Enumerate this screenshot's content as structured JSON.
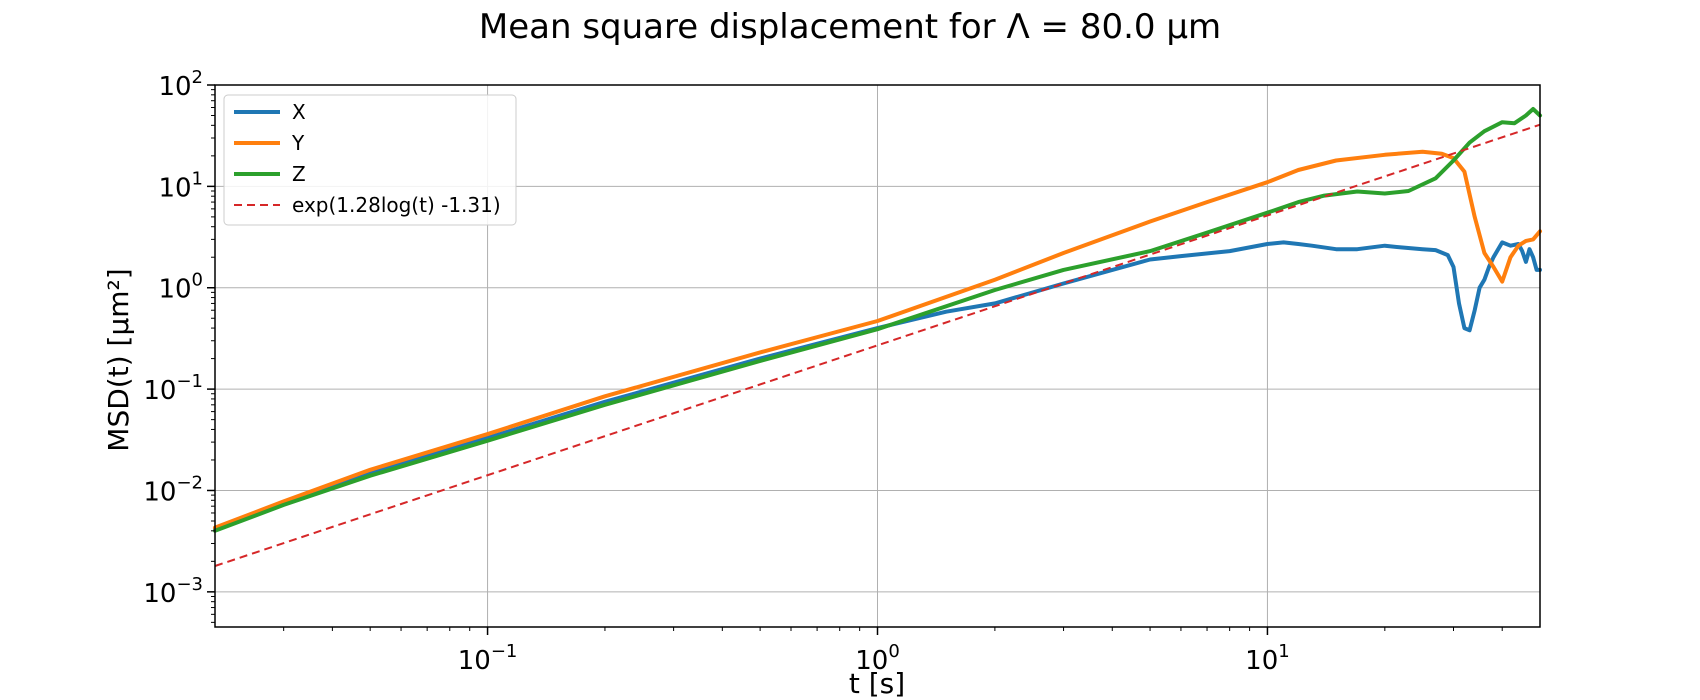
{
  "chart_data": {
    "type": "line",
    "title": "Mean square displacement for Λ = 80.0 μm",
    "xlabel": "t [s]",
    "ylabel": "MSD(t) [μm²]",
    "xscale": "log",
    "yscale": "log",
    "xlim": [
      0.02,
      50
    ],
    "ylim": [
      0.00045,
      100
    ],
    "grid": true,
    "legend_position": "top-left",
    "x_ticks": [
      {
        "value": 0.1,
        "base": "10",
        "exp": "−1"
      },
      {
        "value": 1,
        "base": "10",
        "exp": "0"
      },
      {
        "value": 10,
        "base": "10",
        "exp": "1"
      }
    ],
    "y_ticks": [
      {
        "value": 0.001,
        "base": "10",
        "exp": "−3"
      },
      {
        "value": 0.01,
        "base": "10",
        "exp": "−2"
      },
      {
        "value": 0.1,
        "base": "10",
        "exp": "−1"
      },
      {
        "value": 1,
        "base": "10",
        "exp": "0"
      },
      {
        "value": 10,
        "base": "10",
        "exp": "1"
      },
      {
        "value": 100,
        "base": "10",
        "exp": "2"
      }
    ],
    "series": [
      {
        "name": "X",
        "color": "#1f77b4",
        "style": "solid",
        "x": [
          0.02,
          0.03,
          0.05,
          0.1,
          0.2,
          0.5,
          1.0,
          1.5,
          2.0,
          3.0,
          4.0,
          5.0,
          6.0,
          8.0,
          10.0,
          11.0,
          12.0,
          13.0,
          15.0,
          17.0,
          20.0,
          22.0,
          25.0,
          27.0,
          29.0,
          30.0,
          31.0,
          32.0,
          33.0,
          34.0,
          35.0,
          36.0,
          37.0,
          38.0,
          40.0,
          42.0,
          44.0,
          45.0,
          46.0,
          47.0,
          48.0,
          49.0,
          50.0
        ],
        "y": [
          0.0042,
          0.0075,
          0.015,
          0.033,
          0.075,
          0.2,
          0.4,
          0.58,
          0.7,
          1.1,
          1.5,
          1.9,
          2.05,
          2.3,
          2.7,
          2.8,
          2.7,
          2.6,
          2.4,
          2.4,
          2.6,
          2.5,
          2.4,
          2.35,
          2.1,
          1.6,
          0.7,
          0.4,
          0.38,
          0.6,
          1.0,
          1.2,
          1.6,
          2.0,
          2.8,
          2.6,
          2.7,
          2.3,
          1.8,
          2.4,
          2.0,
          1.5,
          1.5
        ]
      },
      {
        "name": "Y",
        "color": "#ff7f0e",
        "style": "solid",
        "x": [
          0.02,
          0.03,
          0.05,
          0.1,
          0.2,
          0.5,
          1.0,
          2.0,
          3.0,
          5.0,
          7.0,
          10.0,
          12.0,
          15.0,
          20.0,
          25.0,
          28.0,
          30.0,
          32.0,
          34.0,
          36.0,
          38.0,
          40.0,
          42.0,
          44.0,
          46.0,
          48.0,
          50.0
        ],
        "y": [
          0.0043,
          0.0078,
          0.016,
          0.036,
          0.085,
          0.23,
          0.47,
          1.2,
          2.2,
          4.5,
          7.0,
          11.0,
          14.5,
          18.0,
          20.5,
          22.0,
          21.0,
          19.0,
          14.0,
          5.0,
          2.2,
          1.6,
          1.15,
          2.0,
          2.6,
          2.9,
          3.0,
          3.6
        ]
      },
      {
        "name": "Z",
        "color": "#2ca02c",
        "style": "solid",
        "x": [
          0.02,
          0.03,
          0.05,
          0.1,
          0.2,
          0.5,
          1.0,
          2.0,
          3.0,
          5.0,
          7.0,
          10.0,
          12.0,
          14.0,
          17.0,
          20.0,
          23.0,
          27.0,
          30.0,
          33.0,
          36.0,
          40.0,
          43.0,
          46.0,
          48.0,
          50.0
        ],
        "y": [
          0.004,
          0.0072,
          0.014,
          0.031,
          0.07,
          0.19,
          0.39,
          0.95,
          1.5,
          2.3,
          3.5,
          5.5,
          7.0,
          8.1,
          8.9,
          8.5,
          9.0,
          12.0,
          18.0,
          27.0,
          35.0,
          43.0,
          42.0,
          50.0,
          58.0,
          50.0
        ]
      },
      {
        "name": "exp(1.28log(t) -1.31)",
        "color": "#d62728",
        "style": "dashed",
        "x": [
          0.02,
          50.0
        ],
        "y": [
          0.0018,
          40.6
        ]
      }
    ]
  }
}
